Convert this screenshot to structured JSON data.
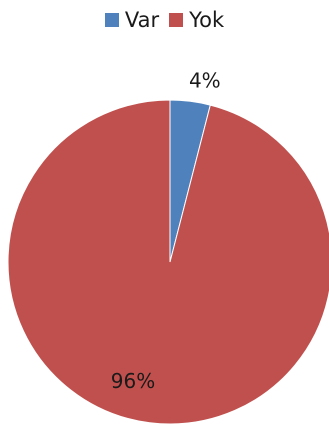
{
  "chart_data": {
    "type": "pie",
    "categories": [
      "Var",
      "Yok"
    ],
    "values": [
      4,
      96
    ],
    "labels": [
      "4%",
      "96%"
    ],
    "colors": [
      "#4f81bd",
      "#c0504d"
    ],
    "legend_position": "top",
    "title": ""
  }
}
